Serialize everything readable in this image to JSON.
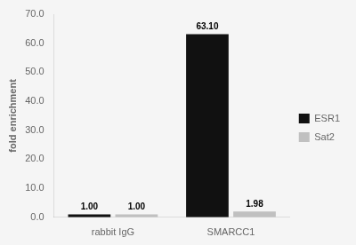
{
  "chart_data": {
    "type": "bar",
    "categories": [
      "rabbit IgG",
      "SMARCC1"
    ],
    "series": [
      {
        "name": "ESR1",
        "color": "#111111",
        "values": [
          1.0,
          63.1
        ],
        "value_labels": [
          "1.00",
          "63.10"
        ]
      },
      {
        "name": "Sat2",
        "color": "#c0c0c0",
        "values": [
          1.0,
          1.98
        ],
        "value_labels": [
          "1.00",
          "1.98"
        ]
      }
    ],
    "ylabel": "fold enrichment",
    "ylim": [
      0,
      70.0
    ],
    "yticks": [
      {
        "value": 0.0,
        "label": "0.0"
      },
      {
        "value": 10.0,
        "label": "10.0"
      },
      {
        "value": 20.0,
        "label": "20.0"
      },
      {
        "value": 30.0,
        "label": "30.0"
      },
      {
        "value": 40.0,
        "label": "40.0"
      },
      {
        "value": 50.0,
        "label": "50.0"
      },
      {
        "value": 60.0,
        "label": "60.0"
      },
      {
        "value": 70.0,
        "label": "70.0"
      }
    ],
    "grid": false,
    "legend": "right",
    "data_labels": true
  }
}
